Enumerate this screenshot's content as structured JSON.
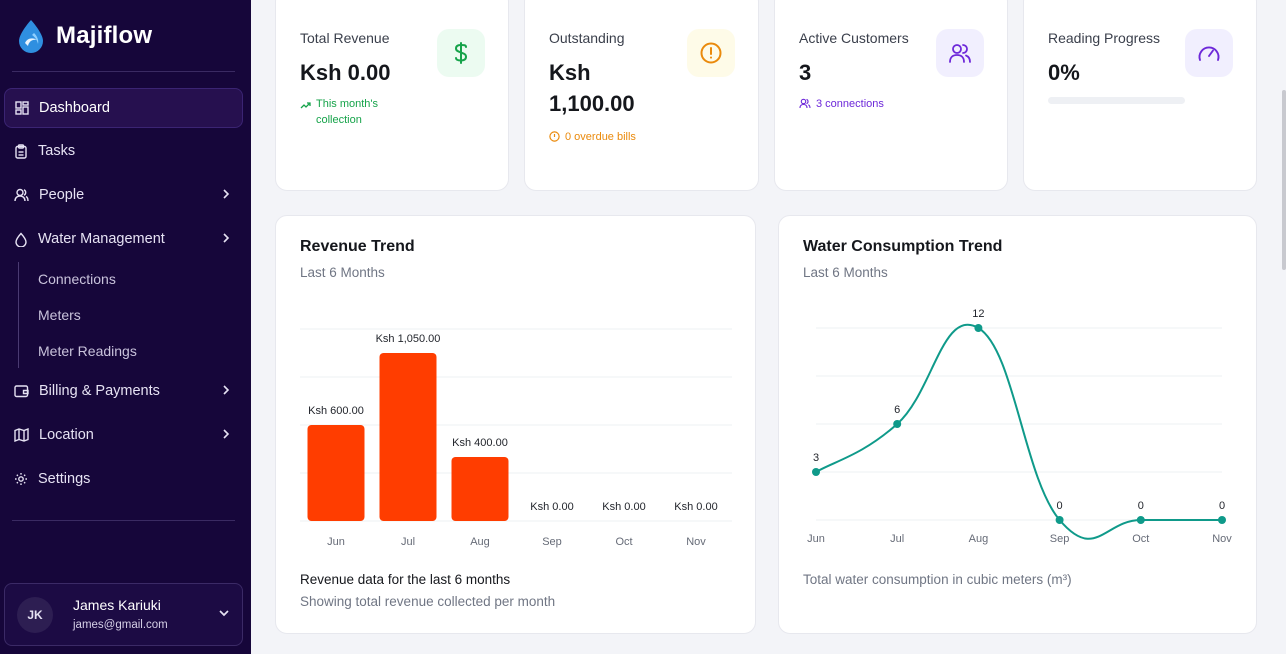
{
  "brand": {
    "name": "Majiflow"
  },
  "sidebar": {
    "items": [
      {
        "label": "Dashboard",
        "icon": "dashboard-icon",
        "active": true
      },
      {
        "label": "Tasks",
        "icon": "clipboard-icon"
      },
      {
        "label": "People",
        "icon": "users-icon",
        "expandable": true
      },
      {
        "label": "Water Management",
        "icon": "droplet-icon",
        "expandable": true
      },
      {
        "label": "Billing & Payments",
        "icon": "wallet-icon",
        "expandable": true
      },
      {
        "label": "Location",
        "icon": "map-icon",
        "expandable": true
      },
      {
        "label": "Settings",
        "icon": "gear-icon"
      }
    ],
    "water_sub": [
      "Connections",
      "Meters",
      "Meter Readings"
    ]
  },
  "user": {
    "initials": "JK",
    "name": "James Kariuki",
    "email": "james@gmail.com"
  },
  "stats": {
    "revenue": {
      "label": "Total Revenue",
      "value": "Ksh 0.00",
      "sub": "This month's collection",
      "color": "#16a34a"
    },
    "outstanding": {
      "label": "Outstanding",
      "value_line1": "Ksh",
      "value_line2": "1,100.00",
      "sub": "0 overdue bills",
      "color": "#ea8a0c"
    },
    "customers": {
      "label": "Active Customers",
      "value": "3",
      "sub": "3 connections",
      "color": "#6d28d9"
    },
    "reading": {
      "label": "Reading Progress",
      "value": "0%",
      "progress": 0
    }
  },
  "revenue_card": {
    "title": "Revenue Trend",
    "subtitle": "Last 6 Months",
    "footer_title": "Revenue data for the last 6 months",
    "footer_sub": "Showing total revenue collected per month"
  },
  "water_card": {
    "title": "Water Consumption Trend",
    "subtitle": "Last 6 Months",
    "footer": "Total water consumption in cubic meters (m³)"
  },
  "chart_data": [
    {
      "type": "bar",
      "categories": [
        "Jun",
        "Jul",
        "Aug",
        "Sep",
        "Oct",
        "Nov"
      ],
      "values": [
        600,
        1050,
        400,
        0,
        0,
        0
      ],
      "data_labels": [
        "Ksh 600.00",
        "Ksh 1,050.00",
        "Ksh 400.00",
        "Ksh 0.00",
        "Ksh 0.00",
        "Ksh 0.00"
      ],
      "ylim": [
        0,
        1200
      ],
      "grid": true,
      "color": "#ff3d00"
    },
    {
      "type": "line",
      "categories": [
        "Jun",
        "Jul",
        "Aug",
        "Sep",
        "Oct",
        "Nov"
      ],
      "values": [
        3,
        6,
        12,
        0,
        0,
        0
      ],
      "ylim": [
        0,
        12
      ],
      "grid": true,
      "color": "#0f9a8a"
    }
  ]
}
